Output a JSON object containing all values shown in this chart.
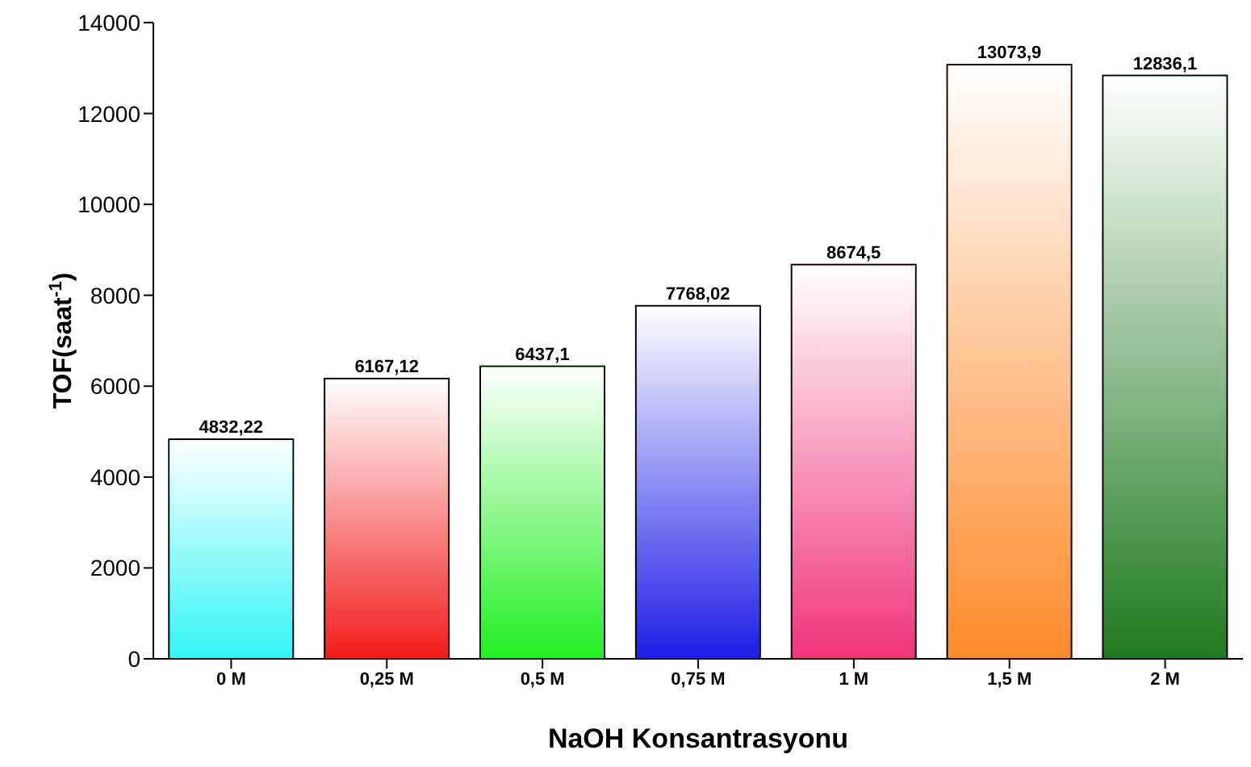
{
  "chart_data": {
    "type": "bar",
    "xlabel": "NaOH Konsantrasyonu",
    "ylabel": "TOF(saat$^{-1}$)",
    "categories": [
      "0 M",
      "0,25 M",
      "0,5 M",
      "0,75 M",
      "1 M",
      "1,5 M",
      "2 M"
    ],
    "values": [
      4832.22,
      6167.12,
      6437.1,
      7768.02,
      8674.5,
      13073.9,
      12836.1
    ],
    "value_labels": [
      "4832,22",
      "6167,12",
      "6437,1",
      "7768,02",
      "8674,5",
      "13073,9",
      "12836,1"
    ],
    "colors": [
      "#33f5f5",
      "#f21c1c",
      "#22f022",
      "#1e1ee6",
      "#f0357a",
      "#ff8a2a",
      "#1f7a1f"
    ],
    "ylim": [
      0,
      14000
    ],
    "yticks": [
      0,
      2000,
      4000,
      6000,
      8000,
      10000,
      12000,
      14000
    ],
    "grid": false,
    "legend": false
  }
}
